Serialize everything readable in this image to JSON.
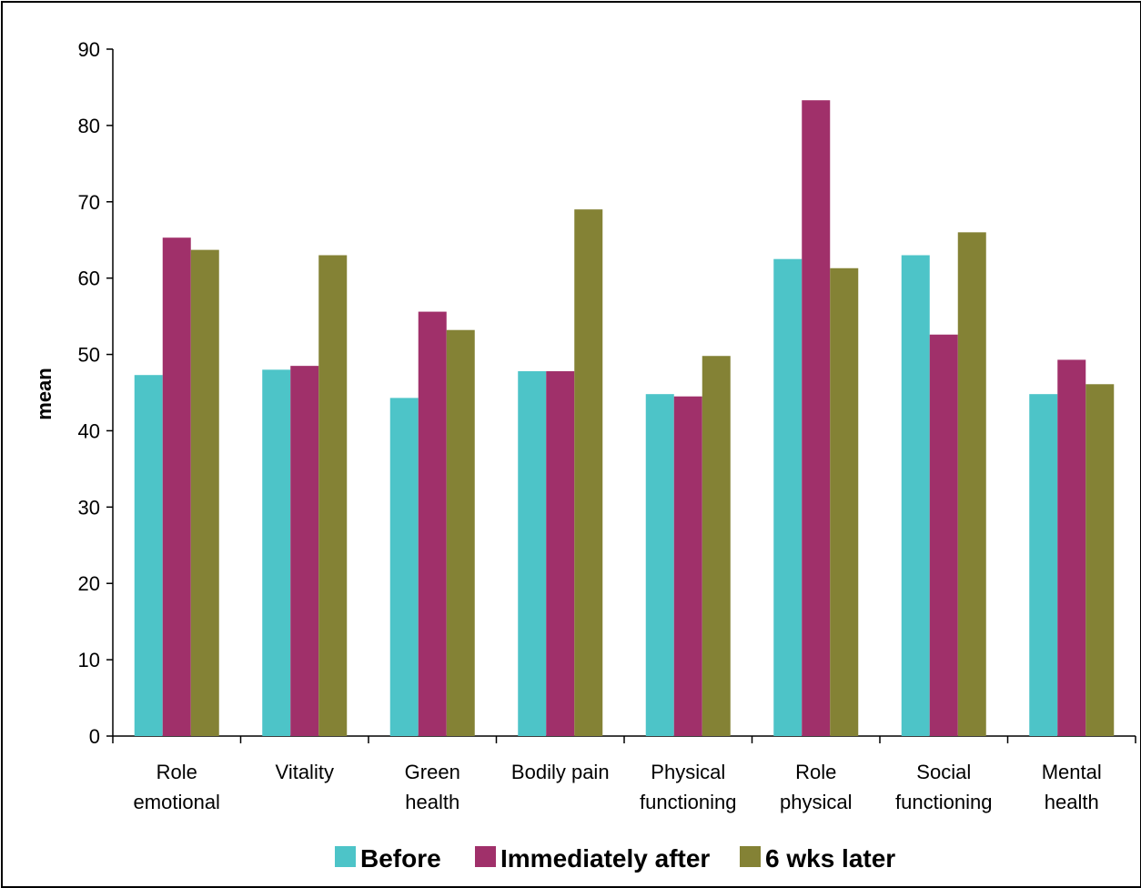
{
  "chart_data": {
    "type": "bar",
    "ylabel": "mean",
    "xlabel": "",
    "ylim": [
      0,
      90
    ],
    "yticks": [
      "0",
      "10",
      "20",
      "30",
      "40",
      "50",
      "60",
      "70",
      "80",
      "90"
    ],
    "categories": [
      [
        "Role",
        "emotional"
      ],
      [
        "Vitality"
      ],
      [
        "Green",
        "health"
      ],
      [
        "Bodily pain"
      ],
      [
        "Physical",
        "functioning"
      ],
      [
        "Role",
        "physical"
      ],
      [
        "Social",
        "functioning"
      ],
      [
        "Mental",
        "health"
      ]
    ],
    "series": [
      {
        "name": "Before",
        "color": "#4DC4C8",
        "values": [
          47.3,
          48.0,
          44.3,
          47.8,
          44.8,
          62.5,
          63.0,
          44.8
        ]
      },
      {
        "name": "Immediately after",
        "color": "#A0306A",
        "values": [
          65.3,
          48.5,
          55.6,
          47.8,
          44.5,
          83.3,
          52.6,
          49.3
        ]
      },
      {
        "name": "6 wks later",
        "color": "#848235",
        "values": [
          63.7,
          63.0,
          53.2,
          69.0,
          49.8,
          61.3,
          66.0,
          46.1
        ]
      }
    ],
    "grid": false,
    "legend_position": "bottom"
  }
}
